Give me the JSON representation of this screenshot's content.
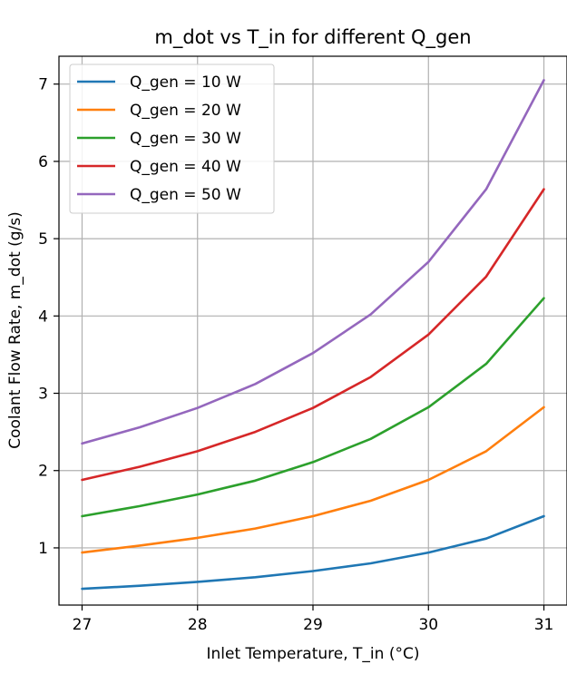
{
  "chart_data": {
    "type": "line",
    "title": "m_dot vs T_in for different Q_gen",
    "xlabel": "Inlet Temperature, T_in (°C)",
    "ylabel": "Coolant Flow Rate, m_dot (g/s)",
    "xlim": [
      26.8,
      31.2
    ],
    "ylim": [
      0.26,
      7.36
    ],
    "xticks": [
      27,
      28,
      29,
      30,
      31
    ],
    "yticks": [
      1,
      2,
      3,
      4,
      5,
      6,
      7
    ],
    "grid": true,
    "legend_position": "upper-left",
    "x": [
      27.0,
      27.5,
      28.0,
      28.5,
      29.0,
      29.5,
      30.0,
      30.5,
      31.0
    ],
    "series": [
      {
        "name": "Q_gen = 10 W",
        "color": "#1f77b4",
        "values": [
          0.47,
          0.51,
          0.56,
          0.62,
          0.7,
          0.8,
          0.94,
          1.12,
          1.41
        ]
      },
      {
        "name": "Q_gen = 20 W",
        "color": "#ff7f0e",
        "values": [
          0.94,
          1.03,
          1.13,
          1.25,
          1.41,
          1.61,
          1.88,
          2.25,
          2.82
        ]
      },
      {
        "name": "Q_gen = 30 W",
        "color": "#2ca02c",
        "values": [
          1.41,
          1.54,
          1.69,
          1.87,
          2.11,
          2.41,
          2.82,
          3.38,
          4.23
        ]
      },
      {
        "name": "Q_gen = 40 W",
        "color": "#d62728",
        "values": [
          1.88,
          2.05,
          2.25,
          2.5,
          2.81,
          3.21,
          3.76,
          4.51,
          5.64
        ]
      },
      {
        "name": "Q_gen = 50 W",
        "color": "#9467bd",
        "values": [
          2.35,
          2.56,
          2.81,
          3.12,
          3.52,
          4.02,
          4.7,
          5.64,
          7.05
        ]
      }
    ]
  }
}
